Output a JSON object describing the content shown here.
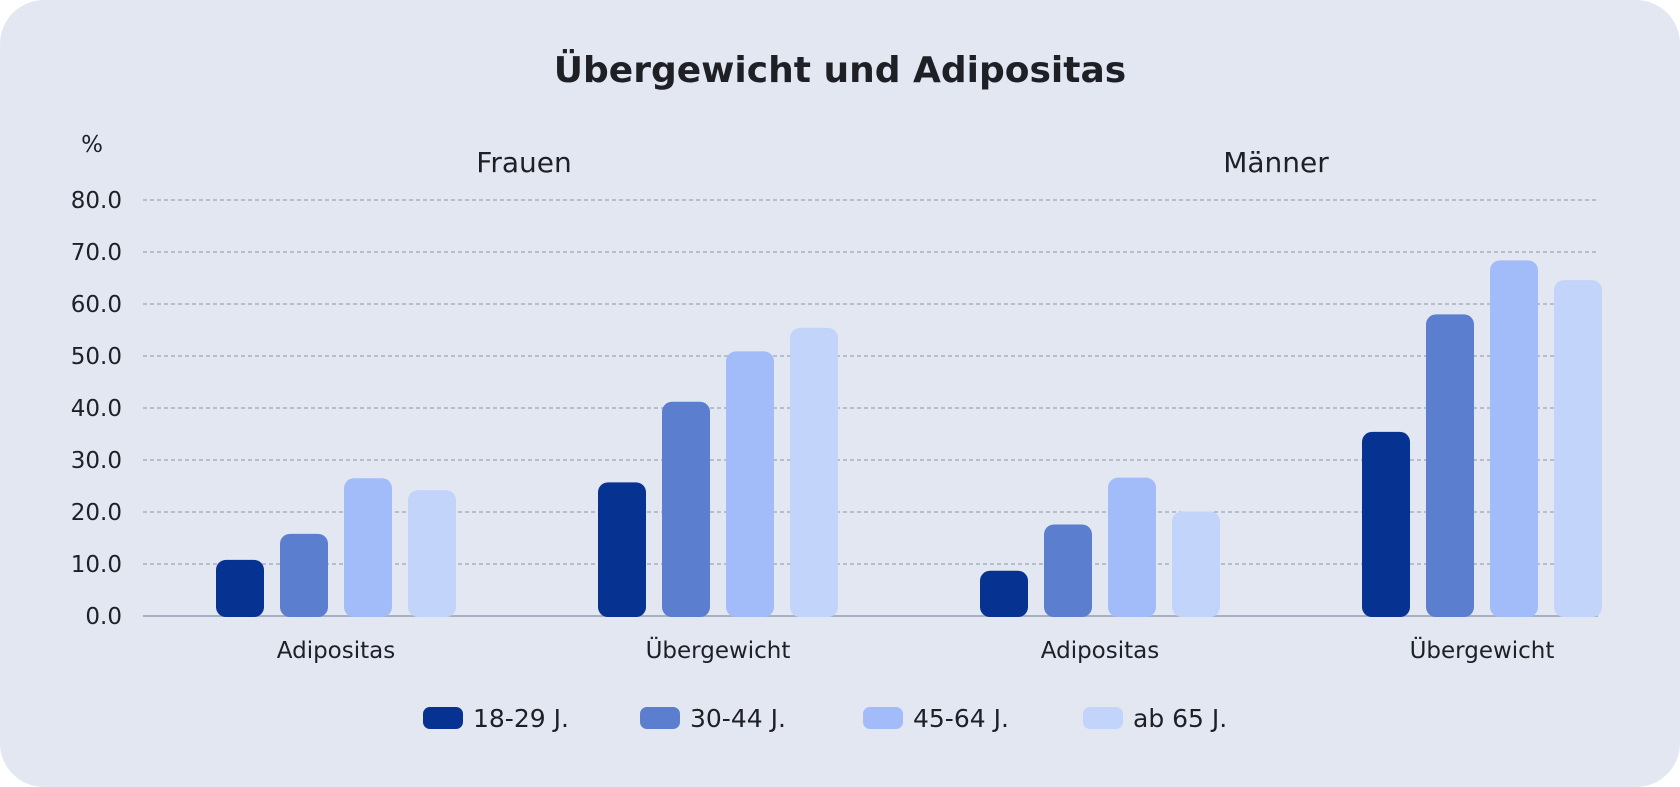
{
  "chart_data": {
    "type": "bar",
    "title": "Übergewicht und Adipositas",
    "ylabel": "%",
    "ylim": [
      0,
      80
    ],
    "yticks": [
      "0.0",
      "10.0",
      "20.0",
      "30.0",
      "40.0",
      "50.0",
      "60.0",
      "70.0",
      "80.0"
    ],
    "grid": true,
    "legend_position": "bottom",
    "series_names": [
      "18-29 J.",
      "30-44 J.",
      "45-64 J.",
      "ab 65 J."
    ],
    "colors": [
      "#063291",
      "#5b7ecf",
      "#a2bcf9",
      "#c3d4fb"
    ],
    "panels": [
      {
        "title": "Frauen",
        "categories": [
          "Adipositas",
          "Übergewicht"
        ],
        "series": [
          {
            "name": "18-29 J.",
            "values": [
              10.8,
              25.7
            ]
          },
          {
            "name": "30-44 J.",
            "values": [
              15.8,
              41.2
            ]
          },
          {
            "name": "45-64 J.",
            "values": [
              26.5,
              50.9
            ]
          },
          {
            "name": "ab 65 J.",
            "values": [
              24.2,
              55.4
            ]
          }
        ]
      },
      {
        "title": "Männer",
        "categories": [
          "Adipositas",
          "Übergewicht"
        ],
        "series": [
          {
            "name": "18-29 J.",
            "values": [
              8.7,
              35.4
            ]
          },
          {
            "name": "30-44 J.",
            "values": [
              17.6,
              58.0
            ]
          },
          {
            "name": "45-64 J.",
            "values": [
              26.6,
              68.4
            ]
          },
          {
            "name": "ab 65 J.",
            "values": [
              20.1,
              64.6
            ]
          }
        ]
      }
    ]
  }
}
